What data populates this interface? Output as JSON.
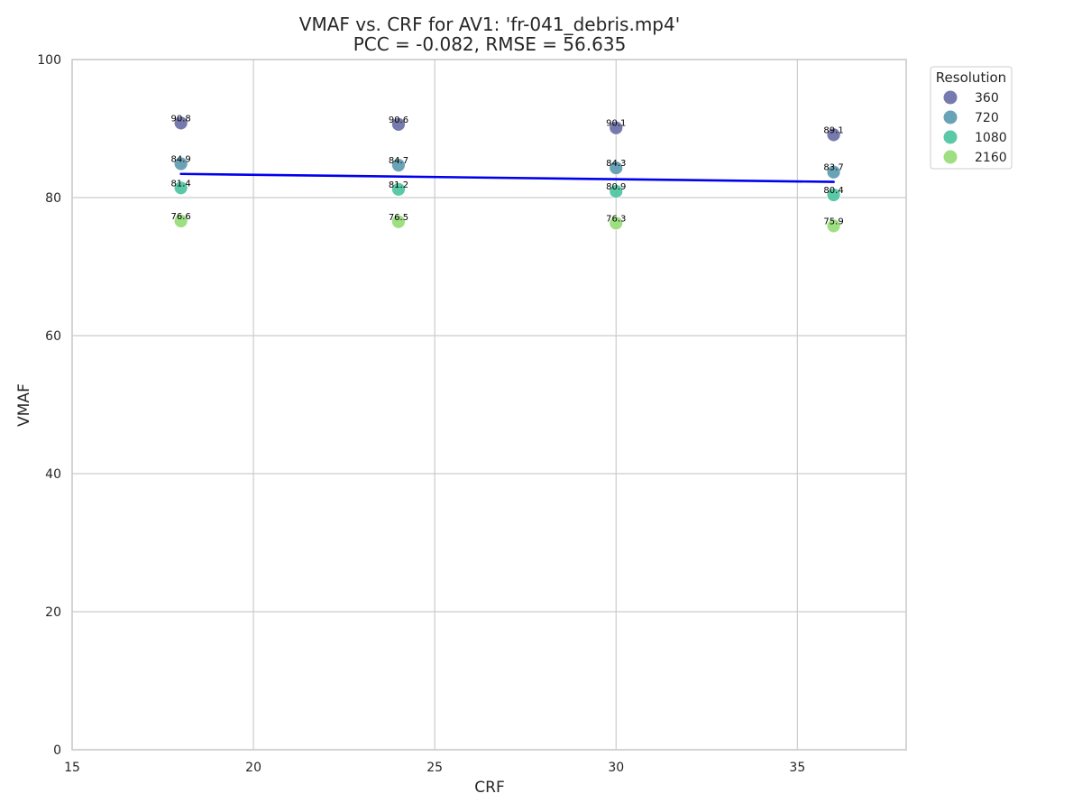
{
  "chart_data": {
    "type": "scatter",
    "title_line1": "VMAF vs. CRF for AV1: 'fr-041_debris.mp4'",
    "title_line2": "PCC = -0.082, RMSE = 56.635",
    "xlabel": "CRF",
    "ylabel": "VMAF",
    "xlim": [
      15,
      38
    ],
    "ylim": [
      0,
      100
    ],
    "xticks": [
      15,
      20,
      25,
      30,
      35
    ],
    "yticks": [
      0,
      20,
      40,
      60,
      80,
      100
    ],
    "grid": true,
    "legend": {
      "title": "Resolution",
      "placement": "outside-top-right"
    },
    "series": [
      {
        "name": "360",
        "color": "#6b6fa6",
        "x": [
          18,
          24,
          30,
          36
        ],
        "y": [
          90.8,
          90.6,
          90.1,
          89.1
        ]
      },
      {
        "name": "720",
        "color": "#5e9bb0",
        "x": [
          18,
          24,
          30,
          36
        ],
        "y": [
          84.9,
          84.7,
          84.3,
          83.7
        ]
      },
      {
        "name": "1080",
        "color": "#4dc4a0",
        "x": [
          18,
          24,
          30,
          36
        ],
        "y": [
          81.4,
          81.2,
          80.9,
          80.4
        ]
      },
      {
        "name": "2160",
        "color": "#97dc78",
        "x": [
          18,
          24,
          30,
          36
        ],
        "y": [
          76.6,
          76.5,
          76.3,
          75.9
        ]
      }
    ],
    "trendline": {
      "color": "#0000ee",
      "x": [
        18,
        36
      ],
      "y": [
        83.43,
        82.28
      ]
    }
  }
}
